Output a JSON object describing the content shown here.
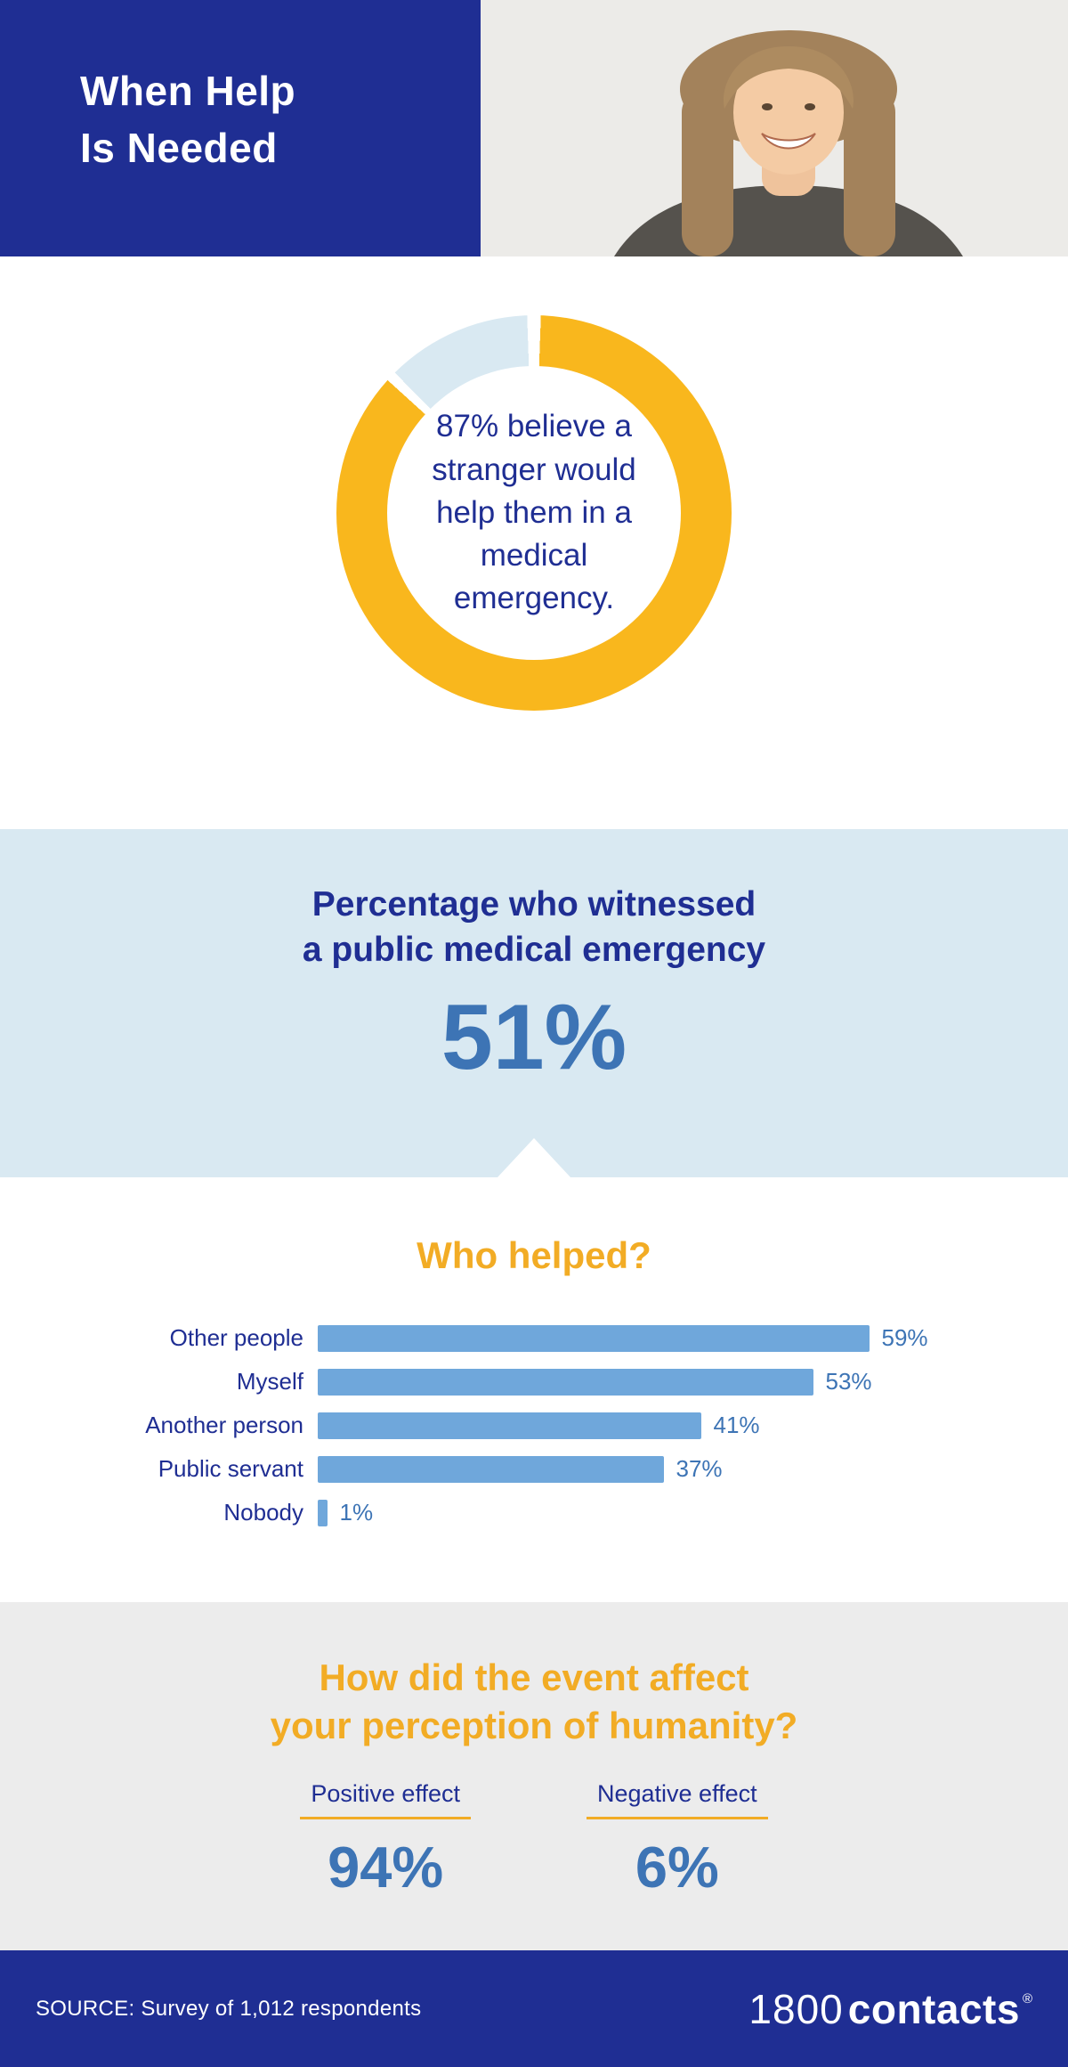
{
  "header": {
    "title_line1": "When Help",
    "title_line2": "Is Needed"
  },
  "donut": {
    "percent": 87,
    "text": "87% believe a stranger would help them in a medical emergency.",
    "colors": {
      "main": "#F9B71D",
      "rest": "#D9E9F2"
    }
  },
  "witnessed": {
    "title_line1": "Percentage who witnessed",
    "title_line2": "a public medical emergency",
    "value": "51%"
  },
  "who_helped": {
    "title": "Who helped?",
    "bars": [
      {
        "label": "Other people",
        "value": 59,
        "display": "59%"
      },
      {
        "label": "Myself",
        "value": 53,
        "display": "53%"
      },
      {
        "label": "Another person",
        "value": 41,
        "display": "41%"
      },
      {
        "label": "Public servant",
        "value": 37,
        "display": "37%"
      },
      {
        "label": "Nobody",
        "value": 1,
        "display": "1%"
      }
    ]
  },
  "perception": {
    "title_line1": "How did the event affect",
    "title_line2": "your perception of humanity?",
    "items": [
      {
        "label": "Positive effect",
        "value": "94%"
      },
      {
        "label": "Negative effect",
        "value": "6%"
      }
    ]
  },
  "footer": {
    "source": "SOURCE: Survey of 1,012 respondents",
    "logo_1800": "1800",
    "logo_contacts": "contacts",
    "logo_reg": "®"
  },
  "colors": {
    "navy": "#1F2E93",
    "yellow_donut": "#F9B71D",
    "yellow_heading": "#F2AC25",
    "light_blue_bg": "#D9E9F2",
    "bar_blue": "#6FA7DB",
    "stat_blue": "#3D74B5",
    "gray_bg": "#ECECEC"
  },
  "chart_data": [
    {
      "type": "pie",
      "subtype": "donut",
      "title": "87% believe a stranger would help them in a medical emergency.",
      "labels": [
        "Believe a stranger would help",
        "Other"
      ],
      "values": [
        87,
        13
      ],
      "colors": [
        "#F9B71D",
        "#D9E9F2"
      ]
    },
    {
      "type": "bar",
      "orientation": "horizontal",
      "title": "Who helped?",
      "categories": [
        "Other people",
        "Myself",
        "Another person",
        "Public servant",
        "Nobody"
      ],
      "values": [
        59,
        53,
        41,
        37,
        1
      ],
      "value_labels": [
        "59%",
        "53%",
        "41%",
        "37%",
        "1%"
      ],
      "xlim": [
        0,
        100
      ],
      "grid": false,
      "legend": false
    },
    {
      "type": "bar",
      "title": "How did the event affect your perception of humanity?",
      "categories": [
        "Positive effect",
        "Negative effect"
      ],
      "values": [
        94,
        6
      ],
      "value_labels": [
        "94%",
        "6%"
      ]
    }
  ]
}
